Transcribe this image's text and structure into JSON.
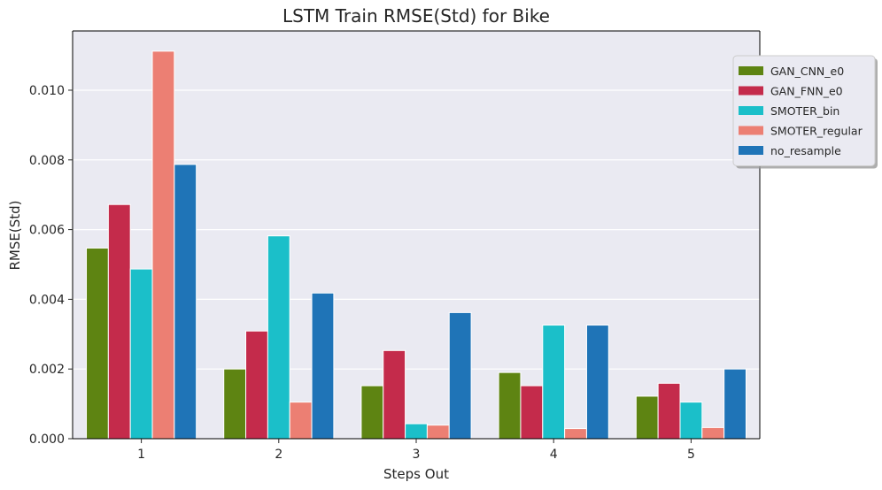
{
  "chart_data": {
    "type": "bar",
    "title": "LSTM Train RMSE(Std) for Bike",
    "xlabel": "Steps Out",
    "ylabel": "RMSE(Std)",
    "categories": [
      "1",
      "2",
      "3",
      "4",
      "5"
    ],
    "ylim": [
      0,
      0.0117
    ],
    "yticks": [
      "0.000",
      "0.002",
      "0.004",
      "0.006",
      "0.008",
      "0.010"
    ],
    "grid": true,
    "legend_position": "top-right",
    "series": [
      {
        "name": "GAN_CNN_e0",
        "color": "#5e8412",
        "values": [
          0.00547,
          0.002,
          0.00152,
          0.0019,
          0.00122
        ]
      },
      {
        "name": "GAN_FNN_e0",
        "color": "#c42b4b",
        "values": [
          0.00672,
          0.00309,
          0.00253,
          0.00152,
          0.00159
        ]
      },
      {
        "name": "SMOTER_bin",
        "color": "#1bbfc9",
        "values": [
          0.00487,
          0.00582,
          0.00043,
          0.00326,
          0.00105
        ]
      },
      {
        "name": "SMOTER_regular",
        "color": "#ec7f73",
        "values": [
          0.01112,
          0.00105,
          0.00039,
          0.00029,
          0.00032
        ]
      },
      {
        "name": "no_resample",
        "color": "#1f74b7",
        "values": [
          0.00787,
          0.00418,
          0.00362,
          0.00326,
          0.002
        ]
      }
    ]
  }
}
